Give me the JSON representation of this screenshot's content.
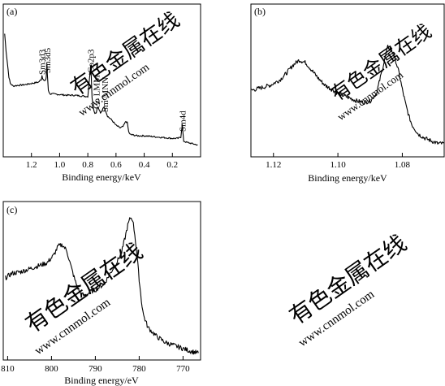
{
  "chart_data": [
    {
      "id": "a",
      "type": "line",
      "panel_label": "(a)",
      "xlabel": "Binding energy/keV",
      "x_reversed": true,
      "xlim": [
        1.4,
        0.0
      ],
      "ylim": [
        0,
        100
      ],
      "xticks": [
        1.2,
        1.0,
        0.8,
        0.6,
        0.4,
        0.2
      ],
      "xtick_labels": [
        "1.2",
        "1.0",
        "0.8",
        "0.6",
        "0.4",
        "0.2"
      ],
      "annotations": [
        {
          "text": "Sm3d3",
          "x": 1.125
        },
        {
          "text": "Sm3d5",
          "x": 1.09
        },
        {
          "text": "Co2p3",
          "x": 0.78
        },
        {
          "text": "Co LMM",
          "x": 0.74
        },
        {
          "text": "Sm MNN",
          "x": 0.68
        },
        {
          "text": "Sm4d",
          "x": 0.13
        }
      ],
      "series": [
        {
          "points": [
            [
              1.39,
              91
            ],
            [
              1.38,
              78
            ],
            [
              1.37,
              68
            ],
            [
              1.36,
              58
            ],
            [
              1.35,
              53
            ],
            [
              1.33,
              51
            ],
            [
              1.3,
              51.5
            ],
            [
              1.25,
              52
            ],
            [
              1.2,
              53
            ],
            [
              1.15,
              54
            ],
            [
              1.13,
              56
            ],
            [
              1.125,
              59
            ],
            [
              1.12,
              57
            ],
            [
              1.11,
              55
            ],
            [
              1.1,
              55
            ],
            [
              1.095,
              58
            ],
            [
              1.09,
              68
            ],
            [
              1.087,
              60
            ],
            [
              1.08,
              48
            ],
            [
              1.07,
              45
            ],
            [
              1.05,
              45
            ],
            [
              1.0,
              44.5
            ],
            [
              0.95,
              44
            ],
            [
              0.9,
              44
            ],
            [
              0.85,
              43.5
            ],
            [
              0.8,
              43
            ],
            [
              0.79,
              55
            ],
            [
              0.78,
              66
            ],
            [
              0.775,
              58
            ],
            [
              0.77,
              42
            ],
            [
              0.76,
              34
            ],
            [
              0.75,
              30
            ],
            [
              0.74,
              31
            ],
            [
              0.73,
              35
            ],
            [
              0.72,
              33
            ],
            [
              0.71,
              30
            ],
            [
              0.7,
              32
            ],
            [
              0.69,
              35
            ],
            [
              0.68,
              34
            ],
            [
              0.67,
              31
            ],
            [
              0.66,
              28
            ],
            [
              0.63,
              25
            ],
            [
              0.6,
              21
            ],
            [
              0.57,
              19
            ],
            [
              0.55,
              20
            ],
            [
              0.53,
              24
            ],
            [
              0.52,
              23
            ],
            [
              0.51,
              16
            ],
            [
              0.5,
              14
            ],
            [
              0.45,
              13
            ],
            [
              0.4,
              13
            ],
            [
              0.35,
              12.5
            ],
            [
              0.3,
              12
            ],
            [
              0.25,
              11.5
            ],
            [
              0.2,
              11
            ],
            [
              0.16,
              11
            ],
            [
              0.14,
              12
            ],
            [
              0.13,
              22
            ],
            [
              0.125,
              15
            ],
            [
              0.12,
              9
            ],
            [
              0.1,
              8
            ],
            [
              0.06,
              7
            ],
            [
              0.02,
              6
            ]
          ]
        }
      ]
    },
    {
      "id": "b",
      "type": "line",
      "panel_label": "(b)",
      "xlabel": "Binding energy/keV",
      "x_reversed": true,
      "xlim": [
        1.127,
        1.067
      ],
      "ylim": [
        0,
        100
      ],
      "xticks": [
        1.12,
        1.1,
        1.08
      ],
      "xtick_labels": [
        "1.12",
        "1.10",
        "1.08"
      ],
      "series": [
        {
          "points": [
            [
              1.127,
              47
            ],
            [
              1.124,
              49
            ],
            [
              1.121,
              51
            ],
            [
              1.118,
              55
            ],
            [
              1.116,
              60
            ],
            [
              1.114,
              66
            ],
            [
              1.112,
              70
            ],
            [
              1.11,
              68
            ],
            [
              1.108,
              62
            ],
            [
              1.106,
              56
            ],
            [
              1.104,
              51
            ],
            [
              1.102,
              48
            ],
            [
              1.1,
              45
            ],
            [
              1.098,
              43
            ],
            [
              1.096,
              41
            ],
            [
              1.094,
              39
            ],
            [
              1.092,
              38
            ],
            [
              1.09,
              39
            ],
            [
              1.088,
              45
            ],
            [
              1.087,
              55
            ],
            [
              1.086,
              65
            ],
            [
              1.085,
              75
            ],
            [
              1.0845,
              80
            ],
            [
              1.084,
              79
            ],
            [
              1.083,
              76
            ],
            [
              1.082,
              69
            ],
            [
              1.081,
              60
            ],
            [
              1.08,
              48
            ],
            [
              1.079,
              37
            ],
            [
              1.078,
              28
            ],
            [
              1.077,
              21
            ],
            [
              1.075,
              14
            ],
            [
              1.073,
              11
            ],
            [
              1.071,
              9
            ],
            [
              1.069,
              7
            ],
            [
              1.067,
              7
            ]
          ]
        }
      ]
    },
    {
      "id": "c",
      "type": "line",
      "panel_label": "(c)",
      "xlabel": "Binding energy/eV",
      "x_reversed": true,
      "xlim": [
        811,
        766
      ],
      "ylim": [
        0,
        100
      ],
      "xticks": [
        810,
        800,
        790,
        780,
        770
      ],
      "xtick_labels": [
        "810",
        "800",
        "790",
        "780",
        "770"
      ],
      "series": [
        {
          "points": [
            [
              810.5,
              53
            ],
            [
              809,
              56
            ],
            [
              807,
              57
            ],
            [
              805,
              59
            ],
            [
              803,
              61
            ],
            [
              801,
              63
            ],
            [
              799.5,
              68
            ],
            [
              798.5,
              74
            ],
            [
              797.5,
              75
            ],
            [
              796.5,
              71
            ],
            [
              795.5,
              60
            ],
            [
              794.5,
              50
            ],
            [
              793.5,
              43
            ],
            [
              792.5,
              41
            ],
            [
              791,
              44
            ],
            [
              790,
              45
            ],
            [
              789,
              47
            ],
            [
              788,
              49
            ],
            [
              787,
              54
            ],
            [
              786,
              59
            ],
            [
              785,
              64
            ],
            [
              784,
              70
            ],
            [
              783.2,
              80
            ],
            [
              782.6,
              88
            ],
            [
              782,
              93
            ],
            [
              781.5,
              92
            ],
            [
              781,
              82
            ],
            [
              780.5,
              68
            ],
            [
              780,
              52
            ],
            [
              779.5,
              38
            ],
            [
              779,
              28
            ],
            [
              778,
              20
            ],
            [
              777,
              17
            ],
            [
              776,
              14
            ],
            [
              775,
              12
            ],
            [
              774,
              10
            ],
            [
              772,
              8
            ],
            [
              770,
              6
            ],
            [
              768,
              4
            ],
            [
              766.5,
              3
            ]
          ]
        }
      ]
    }
  ],
  "watermarks": [
    {
      "line1": "有色金属在线",
      "line2": "www.cnnmol.com"
    },
    {
      "line1": "有色金属在线",
      "line2": "www.cnnmol.com"
    },
    {
      "line1": "有色金属在线",
      "line2": "www.cnnmol.com"
    },
    {
      "line1": "有色金属在线",
      "line2": "www.cnnmol.com"
    }
  ]
}
